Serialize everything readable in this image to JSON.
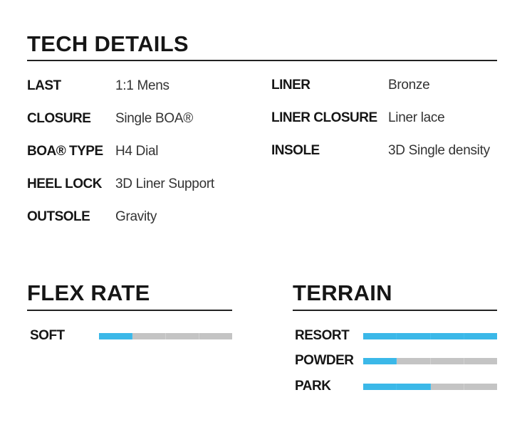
{
  "tech": {
    "title": "TECH DETAILS",
    "left": [
      {
        "label": "LAST",
        "value": "1:1 Mens"
      },
      {
        "label": "CLOSURE",
        "value": "Single BOA®"
      },
      {
        "label": "BOA® TYPE",
        "value": "H4 Dial"
      },
      {
        "label": "HEEL LOCK",
        "value": "3D Liner Support"
      },
      {
        "label": "OUTSOLE",
        "value": "Gravity"
      }
    ],
    "right": [
      {
        "label": "LINER",
        "value": "Bronze"
      },
      {
        "label": "LINER CLOSURE",
        "value": "Liner lace"
      },
      {
        "label": "INSOLE",
        "value": "3D Single density"
      }
    ]
  },
  "flex": {
    "title": "FLEX RATE",
    "rows": [
      {
        "label": "SOFT",
        "level": 1,
        "max": 4
      }
    ]
  },
  "terrain": {
    "title": "TERRAIN",
    "rows": [
      {
        "label": "RESORT",
        "level": 4,
        "max": 4
      },
      {
        "label": "POWDER",
        "level": 1,
        "max": 4
      },
      {
        "label": "PARK",
        "level": 2,
        "max": 4
      }
    ]
  },
  "colors": {
    "accent": "#3bb8e8",
    "track": "#c4c4c4"
  }
}
